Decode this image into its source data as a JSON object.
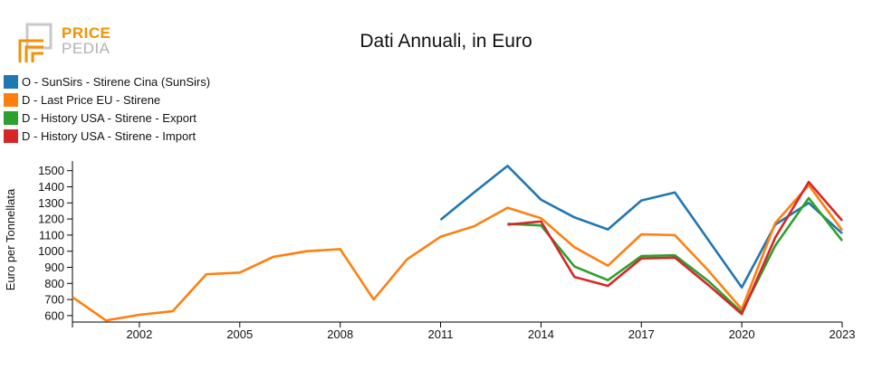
{
  "brand": {
    "line1": "PRICE",
    "line2": "PEDIA"
  },
  "chart_data": {
    "type": "line",
    "title": "Dati Annuali, in Euro",
    "ylabel": "Euro per Tonnellata",
    "xlabel": "",
    "xlim": [
      2000,
      2023
    ],
    "ylim": [
      560,
      1560
    ],
    "x_ticks": [
      2002,
      2005,
      2008,
      2011,
      2014,
      2017,
      2020,
      2023
    ],
    "y_ticks": [
      600,
      700,
      800,
      900,
      1000,
      1100,
      1200,
      1300,
      1400,
      1500
    ],
    "grid": false,
    "legend_position": "top-left",
    "series": [
      {
        "name": "O - SunSirs - Stirene Cina (SunSirs)",
        "color": "#1f77b4",
        "x": [
          2011,
          2012,
          2013,
          2014,
          2015,
          2016,
          2017,
          2018,
          2019,
          2020,
          2021,
          2022,
          2023
        ],
        "values": [
          1195,
          1365,
          1530,
          1320,
          1210,
          1135,
          1315,
          1365,
          1070,
          775,
          1165,
          1300,
          1110
        ]
      },
      {
        "name": "D - Last Price EU - Stirene",
        "color": "#ff7f0e",
        "x": [
          2000,
          2001,
          2002,
          2003,
          2004,
          2005,
          2006,
          2007,
          2008,
          2009,
          2010,
          2011,
          2012,
          2013,
          2014,
          2015,
          2016,
          2017,
          2018,
          2019,
          2020,
          2021,
          2022,
          2023
        ],
        "values": [
          715,
          570,
          605,
          628,
          857,
          867,
          965,
          1000,
          1013,
          700,
          950,
          1090,
          1155,
          1270,
          1205,
          1025,
          910,
          1105,
          1100,
          880,
          640,
          1175,
          1410,
          1130
        ]
      },
      {
        "name": "D - History USA - Stirene - Export",
        "color": "#2ca02c",
        "x": [
          2013,
          2014,
          2015,
          2016,
          2017,
          2018,
          2019,
          2020,
          2021,
          2022,
          2023
        ],
        "values": [
          1170,
          1160,
          905,
          820,
          970,
          975,
          815,
          620,
          1035,
          1330,
          1065
        ]
      },
      {
        "name": "D - History USA - Stirene - Import",
        "color": "#d62728",
        "x": [
          2013,
          2014,
          2015,
          2016,
          2017,
          2018,
          2019,
          2020,
          2021,
          2022,
          2023
        ],
        "values": [
          1165,
          1185,
          840,
          785,
          955,
          960,
          790,
          610,
          1085,
          1430,
          1190
        ]
      }
    ]
  }
}
